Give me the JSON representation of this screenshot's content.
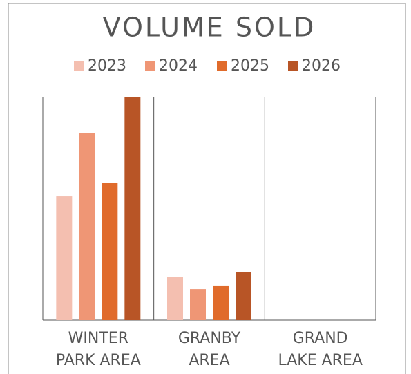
{
  "chart_data": {
    "type": "bar",
    "title": "VOLUME SOLD",
    "categories": [
      "WINTER PARK AREA",
      "GRANBY AREA",
      "GRAND LAKE AREA"
    ],
    "series": [
      {
        "name": "2023",
        "color": "#f4bfb0",
        "values": [
          55.4,
          19.2,
          0
        ]
      },
      {
        "name": "2024",
        "color": "#ef9675",
        "values": [
          83.9,
          13.9,
          0
        ]
      },
      {
        "name": "2025",
        "color": "#e06b2b",
        "values": [
          61.6,
          15.5,
          0
        ]
      },
      {
        "name": "2026",
        "color": "#b85526",
        "values": [
          100,
          21.4,
          0
        ]
      }
    ],
    "ylim": [
      0,
      100
    ],
    "legend": "top"
  }
}
